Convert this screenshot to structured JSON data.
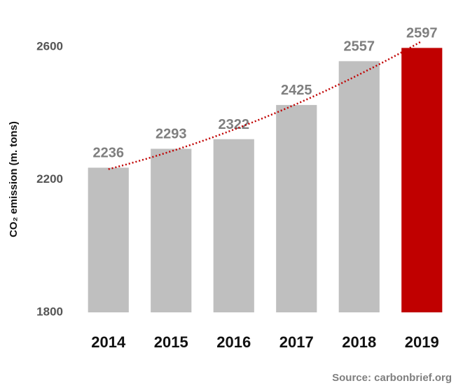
{
  "chart_data": {
    "type": "bar",
    "y_label": "CO₂ emission (m. tons)",
    "source": "Source: carbonbrief.org",
    "categories": [
      "2014",
      "2015",
      "2016",
      "2017",
      "2018",
      "2019"
    ],
    "values": [
      2236,
      2293,
      2322,
      2425,
      2557,
      2597
    ],
    "colors": [
      "#bfbfbf",
      "#bfbfbf",
      "#bfbfbf",
      "#bfbfbf",
      "#bfbfbf",
      "#c00000"
    ],
    "ylim": [
      1800,
      2600
    ],
    "yticks": [
      1800,
      2200,
      2600
    ],
    "grid": false,
    "trendline": {
      "color": "#c00000",
      "style": "dotted"
    }
  }
}
